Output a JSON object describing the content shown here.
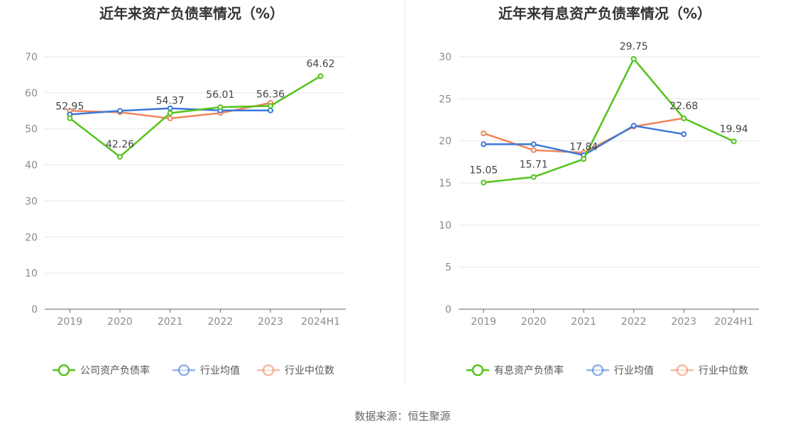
{
  "chart_data": [
    {
      "type": "line",
      "title": "近年来资产负债率情况（%）",
      "categories": [
        "2019",
        "2020",
        "2021",
        "2022",
        "2023",
        "2024H1"
      ],
      "ylim": [
        0,
        70
      ],
      "yticks": [
        0,
        10,
        20,
        30,
        40,
        50,
        60,
        70
      ],
      "xlabel": "",
      "ylabel": "",
      "grid": true,
      "legend_position": "bottom",
      "series": [
        {
          "name": "公司资产负债率",
          "color": "#52c41a",
          "values": [
            52.95,
            42.26,
            54.37,
            56.01,
            56.36,
            64.62
          ],
          "labels": [
            "52.95",
            "42.26",
            "54.37",
            "56.01",
            "56.36",
            "64.62"
          ]
        },
        {
          "name": "行业均值",
          "color": "#3a78d8",
          "values": [
            54.0,
            55.0,
            55.7,
            55.1,
            55.1,
            null
          ]
        },
        {
          "name": "行业中位数",
          "color": "#f0855a",
          "values": [
            55.0,
            54.6,
            52.9,
            54.4,
            57.2,
            null
          ]
        }
      ]
    },
    {
      "type": "line",
      "title": "近年来有息资产负债率情况（%）",
      "categories": [
        "2019",
        "2020",
        "2021",
        "2022",
        "2023",
        "2024H1"
      ],
      "ylim": [
        0,
        30
      ],
      "yticks": [
        0,
        5,
        10,
        15,
        20,
        25,
        30
      ],
      "xlabel": "",
      "ylabel": "",
      "grid": true,
      "legend_position": "bottom",
      "series": [
        {
          "name": "有息资产负债率",
          "color": "#52c41a",
          "values": [
            15.05,
            15.71,
            17.84,
            29.75,
            22.68,
            19.94
          ],
          "labels": [
            "15.05",
            "15.71",
            "17.84",
            "29.75",
            "22.68",
            "19.94"
          ]
        },
        {
          "name": "行业均值",
          "color": "#3a78d8",
          "values": [
            19.6,
            19.6,
            18.3,
            21.8,
            20.8,
            null
          ]
        },
        {
          "name": "行业中位数",
          "color": "#f0855a",
          "values": [
            20.9,
            18.9,
            18.6,
            21.7,
            22.7,
            null
          ]
        }
      ]
    }
  ],
  "footer": {
    "source": "数据来源：恒生聚源"
  },
  "colors": {
    "grid": "#e6e6e6",
    "axis": "#666666",
    "divider": "#e8e8e8"
  }
}
